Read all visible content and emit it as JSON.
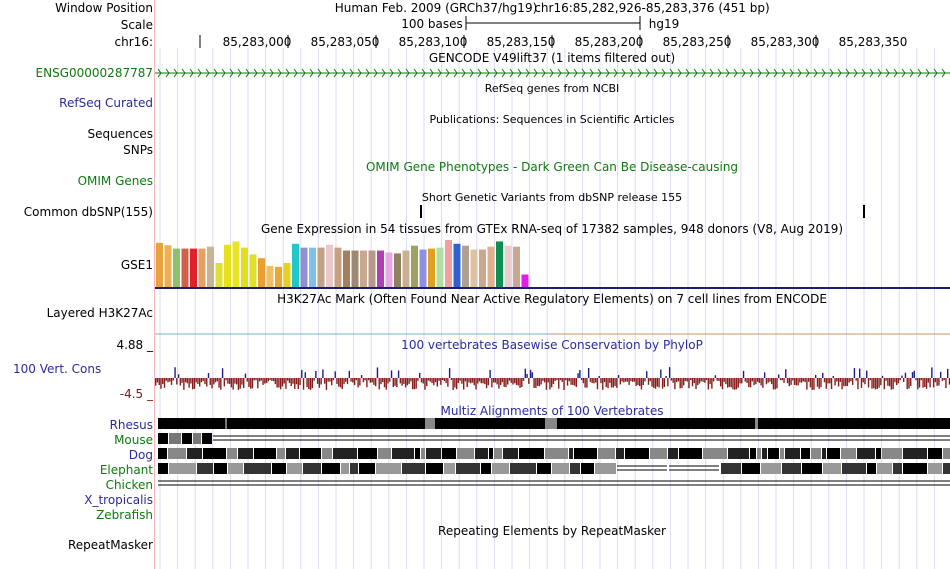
{
  "browser": {
    "window_position_label": "Window Position",
    "scale_label": "Scale",
    "chrom_label": "chr16:",
    "assembly_title": "Human Feb. 2009 (GRCh37/hg19)",
    "position_text": "chr16:85,282,926-85,283,376 (451 bp)",
    "scale_text": "100 bases",
    "scale_db": "hg19",
    "ruler_ticks": [
      "85,283,000",
      "85,283,050",
      "85,283,100",
      "85,283,150",
      "85,283,200",
      "85,283,250",
      "85,283,300",
      "85,283,350"
    ]
  },
  "tracks": {
    "gencode": {
      "title": "GENCODE V49lift37 (1 items filtered out)",
      "gene_label": "ENSG00000287787"
    },
    "refseq": {
      "label": "RefSeq Curated",
      "title": "RefSeq genes from NCBI"
    },
    "publications": {
      "label": "Sequences",
      "title": "Publications: Sequences in Scientific Articles"
    },
    "snps": {
      "label": "SNPs"
    },
    "omim": {
      "label": "OMIM Genes",
      "title": "OMIM Gene Phenotypes - Dark Green Can Be Disease-causing"
    },
    "dbsnp": {
      "label": "Common dbSNP(155)",
      "title": "Short Genetic Variants from dbSNP release 155"
    },
    "gtex": {
      "title": "Gene Expression in 54 tissues from GTEx RNA-seq of 17382 samples, 948 donors (V8, Aug 2019)",
      "label": "GSE1",
      "bars": [
        {
          "color": "#e8a33c",
          "v": 0.92
        },
        {
          "color": "#f0b050",
          "v": 0.87
        },
        {
          "color": "#8fbf6f",
          "v": 0.8
        },
        {
          "color": "#d0604a",
          "v": 0.8
        },
        {
          "color": "#e0202a",
          "v": 0.8
        },
        {
          "color": "#e6a060",
          "v": 0.8
        },
        {
          "color": "#c8b490",
          "v": 0.84
        },
        {
          "color": "#e0e030",
          "v": 0.5
        },
        {
          "color": "#e6e020",
          "v": 0.88
        },
        {
          "color": "#e8e428",
          "v": 0.95
        },
        {
          "color": "#e0e020",
          "v": 0.82
        },
        {
          "color": "#e0e030",
          "v": 0.68
        },
        {
          "color": "#eaa030",
          "v": 0.6
        },
        {
          "color": "#f0c060",
          "v": 0.44
        },
        {
          "color": "#eaa830",
          "v": 0.42
        },
        {
          "color": "#e8d020",
          "v": 0.5
        },
        {
          "color": "#20c8c8",
          "v": 0.9
        },
        {
          "color": "#9090d0",
          "v": 0.82
        },
        {
          "color": "#80c0e8",
          "v": 0.82
        },
        {
          "color": "#c0a088",
          "v": 0.82
        },
        {
          "color": "#e8c8c8",
          "v": 0.88
        },
        {
          "color": "#c8a080",
          "v": 0.82
        },
        {
          "color": "#a08060",
          "v": 0.76
        },
        {
          "color": "#a08870",
          "v": 0.76
        },
        {
          "color": "#c8a890",
          "v": 0.76
        },
        {
          "color": "#b89888",
          "v": 0.76
        },
        {
          "color": "#b040b0",
          "v": 0.76
        },
        {
          "color": "#e8a8e8",
          "v": 0.72
        },
        {
          "color": "#908060",
          "v": 0.7
        },
        {
          "color": "#c8b090",
          "v": 0.76
        },
        {
          "color": "#a0a060",
          "v": 0.86
        },
        {
          "color": "#9090e0",
          "v": 0.78
        },
        {
          "color": "#e0a020",
          "v": 0.8
        },
        {
          "color": "#b0e0a0",
          "v": 0.82
        },
        {
          "color": "#f0a0a0",
          "v": 0.98
        },
        {
          "color": "#3060d0",
          "v": 0.9
        },
        {
          "color": "#b0a090",
          "v": 0.86
        },
        {
          "color": "#e0c0a0",
          "v": 0.78
        },
        {
          "color": "#c8a890",
          "v": 0.78
        },
        {
          "color": "#e0b090",
          "v": 0.84
        },
        {
          "color": "#109050",
          "v": 0.95
        },
        {
          "color": "#e8d0d0",
          "v": 0.86
        },
        {
          "color": "#c8a890",
          "v": 0.84
        },
        {
          "color": "#e020e8",
          "v": 0.26
        }
      ]
    },
    "h3k27ac": {
      "label": "Layered H3K27Ac",
      "title": "H3K27Ac Mark (Often Found Near Active Regulatory Elements) on 7 cell lines from ENCODE"
    },
    "phylop": {
      "label": "100 Vert. Cons",
      "title": "100 vertebrates Basewise Conservation by PhyloP",
      "max_label": "4.88 _",
      "min_label": "-4.5 _"
    },
    "multiz": {
      "title": "Multiz Alignments of 100 Vertebrates",
      "species": [
        "Rhesus",
        "Mouse",
        "Dog",
        "Elephant",
        "Chicken",
        "X_tropicalis",
        "Zebrafish"
      ]
    },
    "repeatmasker": {
      "label": "RepeatMasker",
      "title": "Repeating Elements by RepeatMasker"
    }
  }
}
